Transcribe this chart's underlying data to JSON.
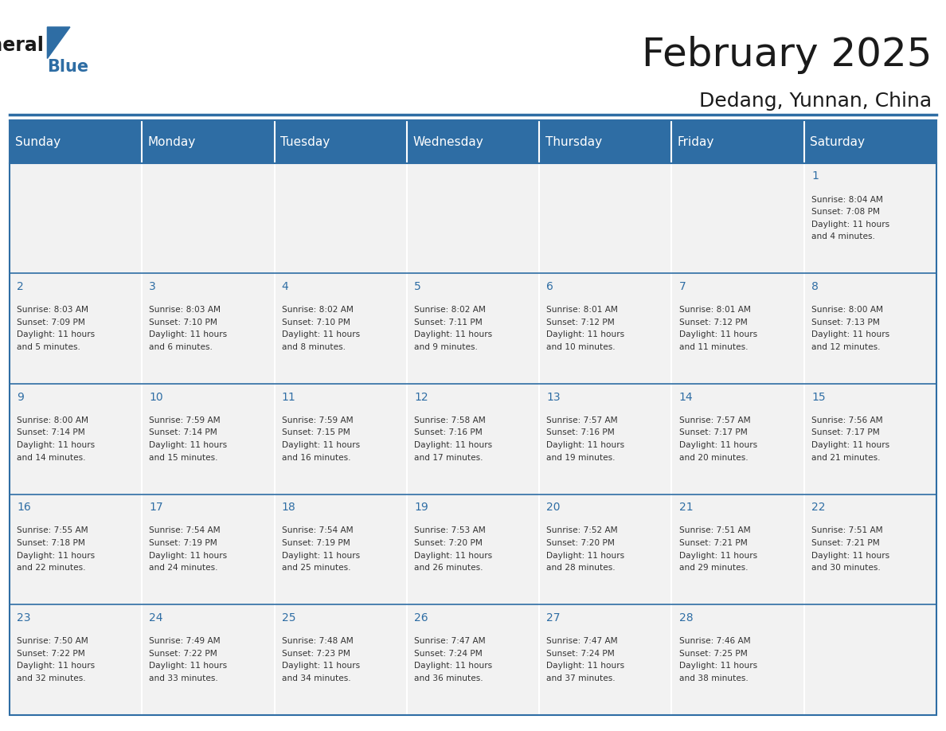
{
  "title": "February 2025",
  "subtitle": "Dedang, Yunnan, China",
  "header_bg_color": "#2E6DA4",
  "header_text_color": "#FFFFFF",
  "cell_bg_color": "#F5F5F5",
  "day_names": [
    "Sunday",
    "Monday",
    "Tuesday",
    "Wednesday",
    "Thursday",
    "Friday",
    "Saturday"
  ],
  "title_color": "#1a1a1a",
  "subtitle_color": "#1a1a1a",
  "line_color": "#2E6DA4",
  "day_number_color": "#2E6DA4",
  "cell_text_color": "#333333",
  "days": [
    {
      "date": 1,
      "col": 6,
      "row": 0,
      "sunrise": "8:04 AM",
      "sunset": "7:08 PM",
      "daylight": "11 hours and 4 minutes."
    },
    {
      "date": 2,
      "col": 0,
      "row": 1,
      "sunrise": "8:03 AM",
      "sunset": "7:09 PM",
      "daylight": "11 hours and 5 minutes."
    },
    {
      "date": 3,
      "col": 1,
      "row": 1,
      "sunrise": "8:03 AM",
      "sunset": "7:10 PM",
      "daylight": "11 hours and 6 minutes."
    },
    {
      "date": 4,
      "col": 2,
      "row": 1,
      "sunrise": "8:02 AM",
      "sunset": "7:10 PM",
      "daylight": "11 hours and 8 minutes."
    },
    {
      "date": 5,
      "col": 3,
      "row": 1,
      "sunrise": "8:02 AM",
      "sunset": "7:11 PM",
      "daylight": "11 hours and 9 minutes."
    },
    {
      "date": 6,
      "col": 4,
      "row": 1,
      "sunrise": "8:01 AM",
      "sunset": "7:12 PM",
      "daylight": "11 hours and 10 minutes."
    },
    {
      "date": 7,
      "col": 5,
      "row": 1,
      "sunrise": "8:01 AM",
      "sunset": "7:12 PM",
      "daylight": "11 hours and 11 minutes."
    },
    {
      "date": 8,
      "col": 6,
      "row": 1,
      "sunrise": "8:00 AM",
      "sunset": "7:13 PM",
      "daylight": "11 hours and 12 minutes."
    },
    {
      "date": 9,
      "col": 0,
      "row": 2,
      "sunrise": "8:00 AM",
      "sunset": "7:14 PM",
      "daylight": "11 hours and 14 minutes."
    },
    {
      "date": 10,
      "col": 1,
      "row": 2,
      "sunrise": "7:59 AM",
      "sunset": "7:14 PM",
      "daylight": "11 hours and 15 minutes."
    },
    {
      "date": 11,
      "col": 2,
      "row": 2,
      "sunrise": "7:59 AM",
      "sunset": "7:15 PM",
      "daylight": "11 hours and 16 minutes."
    },
    {
      "date": 12,
      "col": 3,
      "row": 2,
      "sunrise": "7:58 AM",
      "sunset": "7:16 PM",
      "daylight": "11 hours and 17 minutes."
    },
    {
      "date": 13,
      "col": 4,
      "row": 2,
      "sunrise": "7:57 AM",
      "sunset": "7:16 PM",
      "daylight": "11 hours and 19 minutes."
    },
    {
      "date": 14,
      "col": 5,
      "row": 2,
      "sunrise": "7:57 AM",
      "sunset": "7:17 PM",
      "daylight": "11 hours and 20 minutes."
    },
    {
      "date": 15,
      "col": 6,
      "row": 2,
      "sunrise": "7:56 AM",
      "sunset": "7:17 PM",
      "daylight": "11 hours and 21 minutes."
    },
    {
      "date": 16,
      "col": 0,
      "row": 3,
      "sunrise": "7:55 AM",
      "sunset": "7:18 PM",
      "daylight": "11 hours and 22 minutes."
    },
    {
      "date": 17,
      "col": 1,
      "row": 3,
      "sunrise": "7:54 AM",
      "sunset": "7:19 PM",
      "daylight": "11 hours and 24 minutes."
    },
    {
      "date": 18,
      "col": 2,
      "row": 3,
      "sunrise": "7:54 AM",
      "sunset": "7:19 PM",
      "daylight": "11 hours and 25 minutes."
    },
    {
      "date": 19,
      "col": 3,
      "row": 3,
      "sunrise": "7:53 AM",
      "sunset": "7:20 PM",
      "daylight": "11 hours and 26 minutes."
    },
    {
      "date": 20,
      "col": 4,
      "row": 3,
      "sunrise": "7:52 AM",
      "sunset": "7:20 PM",
      "daylight": "11 hours and 28 minutes."
    },
    {
      "date": 21,
      "col": 5,
      "row": 3,
      "sunrise": "7:51 AM",
      "sunset": "7:21 PM",
      "daylight": "11 hours and 29 minutes."
    },
    {
      "date": 22,
      "col": 6,
      "row": 3,
      "sunrise": "7:51 AM",
      "sunset": "7:21 PM",
      "daylight": "11 hours and 30 minutes."
    },
    {
      "date": 23,
      "col": 0,
      "row": 4,
      "sunrise": "7:50 AM",
      "sunset": "7:22 PM",
      "daylight": "11 hours and 32 minutes."
    },
    {
      "date": 24,
      "col": 1,
      "row": 4,
      "sunrise": "7:49 AM",
      "sunset": "7:22 PM",
      "daylight": "11 hours and 33 minutes."
    },
    {
      "date": 25,
      "col": 2,
      "row": 4,
      "sunrise": "7:48 AM",
      "sunset": "7:23 PM",
      "daylight": "11 hours and 34 minutes."
    },
    {
      "date": 26,
      "col": 3,
      "row": 4,
      "sunrise": "7:47 AM",
      "sunset": "7:24 PM",
      "daylight": "11 hours and 36 minutes."
    },
    {
      "date": 27,
      "col": 4,
      "row": 4,
      "sunrise": "7:47 AM",
      "sunset": "7:24 PM",
      "daylight": "11 hours and 37 minutes."
    },
    {
      "date": 28,
      "col": 5,
      "row": 4,
      "sunrise": "7:46 AM",
      "sunset": "7:25 PM",
      "daylight": "11 hours and 38 minutes."
    }
  ]
}
